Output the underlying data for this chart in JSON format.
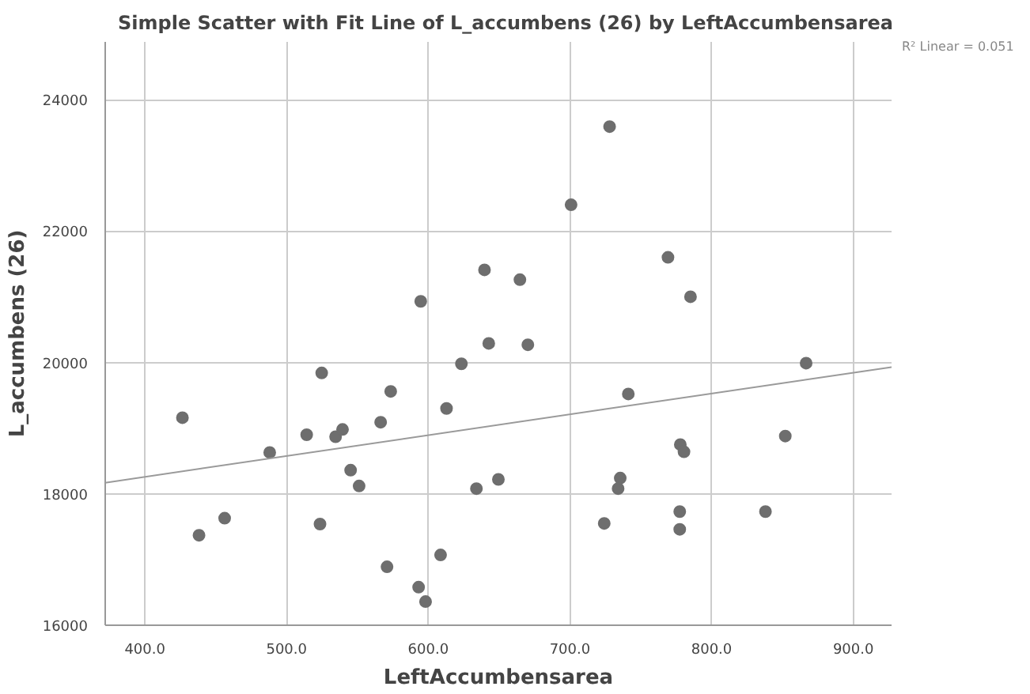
{
  "chart_data": {
    "type": "scatter",
    "title": "Simple Scatter with Fit Line of L_accumbens (26) by LeftAccumbensarea",
    "xlabel": "LeftAccumbensarea",
    "ylabel": "L_accumbens (26)",
    "annotations": [
      "R² Linear = 0.051"
    ],
    "series": [
      {
        "color": "#6e6e6e",
        "marker": "circle",
        "x": [
          426.5,
          438.2,
          456.3,
          488.1,
          514.2,
          523.6,
          524.8,
          534.6,
          539.5,
          545.2,
          551.2,
          566.4,
          570.9,
          573.5,
          593.2,
          598.1,
          608.7,
          612.9,
          623.4,
          634.0,
          642.7,
          649.5,
          670.3,
          594.7,
          639.7,
          664.7,
          728.0,
          700.8,
          769.2,
          785.1,
          741.2,
          777.9,
          780.5,
          852.0,
          866.7,
          735.5,
          734.0,
          724.2,
          777.5,
          777.5,
          838.0
        ],
        "values": [
          19160,
          17370,
          17630,
          18630,
          18900,
          17540,
          19840,
          18870,
          18980,
          18360,
          18120,
          19090,
          16890,
          19560,
          16580,
          16360,
          17070,
          19300,
          19980,
          18080,
          20290,
          18220,
          20270,
          20930,
          21410,
          21260,
          23590,
          22400,
          21600,
          21000,
          19520,
          18750,
          18640,
          18880,
          19990,
          18240,
          18080,
          17550,
          17730,
          17460,
          17730
        ]
      },
      {
        "type": "line",
        "color": "#9a9a9a",
        "x": [
          372,
          927
        ],
        "values": [
          18170,
          19930
        ]
      }
    ],
    "xlim": [
      372,
      927
    ],
    "ylim": [
      16000,
      24880
    ],
    "xticks": [
      {
        "value": 400,
        "label": "400.0"
      },
      {
        "value": 500,
        "label": "500.0"
      },
      {
        "value": 600,
        "label": "600.0"
      },
      {
        "value": 700,
        "label": "700.0"
      },
      {
        "value": 800,
        "label": "800.0"
      },
      {
        "value": 900,
        "label": "900.0"
      }
    ],
    "yticks": [
      16000,
      18000,
      20000,
      22000,
      24000
    ],
    "grid": true
  }
}
